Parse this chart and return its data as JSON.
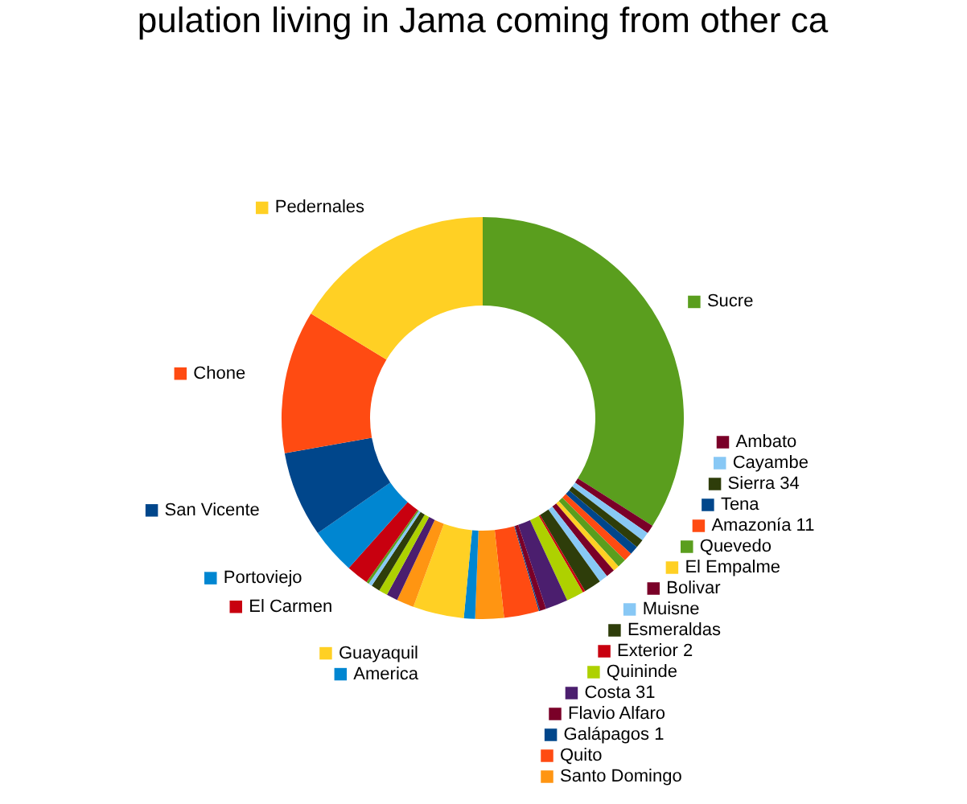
{
  "chart_data": {
    "type": "donut",
    "legend": "right",
    "title": "pulation living in Jama coming from other ca",
    "categories": [
      "Sucre",
      "Ambato",
      "Cayambe",
      "Sierra 34",
      "Tena",
      "Amazonía 11",
      "Quevedo",
      "El Empalme",
      "Bolivar",
      "Muisne",
      "Esmeraldas",
      "Exterior 2",
      "Quininde",
      "Costa 31",
      "Flavio Alfaro",
      "Galápagos 1",
      "Quito",
      "Santo Domingo",
      "America",
      "Guayaquil",
      null,
      null,
      null,
      null,
      null,
      null,
      "El Carmen",
      "Portoviejo",
      "San Vicente",
      "Chone",
      "Pedernales"
    ],
    "values": [
      34,
      0.7,
      0.7,
      0.7,
      0.7,
      0.7,
      0.7,
      0.5,
      0.7,
      0.7,
      1.4,
      0.2,
      1.4,
      1.8,
      0.5,
      0.1,
      2.8,
      2.3,
      0.9,
      4.1,
      1.4,
      0.9,
      0.7,
      0.7,
      0.3,
      0.2,
      1.8,
      3.7,
      6.9,
      11.5,
      16.3
    ],
    "colors": [
      "#5a9e1e",
      "#7a0028",
      "#88c8f5",
      "#2e3d0a",
      "#00468b",
      "#ff4b12",
      "#5a9e1e",
      "#ffd024",
      "#7a0028",
      "#88c8f5",
      "#2e3d0a",
      "#c8000f",
      "#aed100",
      "#4b1e6e",
      "#7a0028",
      "#00468b",
      "#ff4b12",
      "#ff9512",
      "#0086d1",
      "#ffd024",
      "#ff9512",
      "#4b1e6e",
      "#aed100",
      "#2e3d0a",
      "#88c8f5",
      "#5a9e1e",
      "#c8000f",
      "#0086d1",
      "#00468b",
      "#ff4b12",
      "#ffd024"
    ]
  }
}
